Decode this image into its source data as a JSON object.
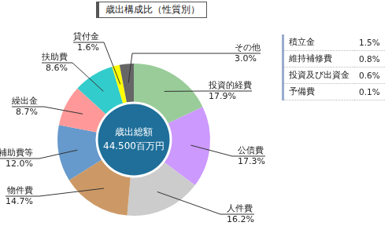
{
  "chart_data": {
    "type": "doughnut",
    "title": "歳出構成比（性質別）",
    "annotations": [
      "歳出総額",
      "44.500百万円"
    ],
    "categories": [
      "投資的経費",
      "公債費",
      "人件費",
      "物件費",
      "補助費等",
      "繰出金",
      "扶助費",
      "貸付金",
      "その他"
    ],
    "values": [
      17.9,
      17.3,
      16.2,
      14.7,
      12.0,
      8.7,
      8.6,
      1.6,
      3.0
    ],
    "value_labels": [
      "17.9%",
      "17.3%",
      "16.2%",
      "14.7%",
      "12.0%",
      "8.7%",
      "8.6%",
      "1.6%",
      "3.0%"
    ],
    "colors": [
      "#99cc99",
      "#cc99ff",
      "#cccccc",
      "#cc9966",
      "#6699cc",
      "#ff9999",
      "#33cccc",
      "#ffff00",
      "#666666"
    ],
    "data_labels": true,
    "table": {
      "rows": [
        [
          "積立金",
          "1.5%"
        ],
        [
          "維持補修費",
          "0.8%"
        ],
        [
          "投資及び出資金",
          "0.6%"
        ],
        [
          "予備費",
          "0.1%"
        ]
      ]
    }
  }
}
